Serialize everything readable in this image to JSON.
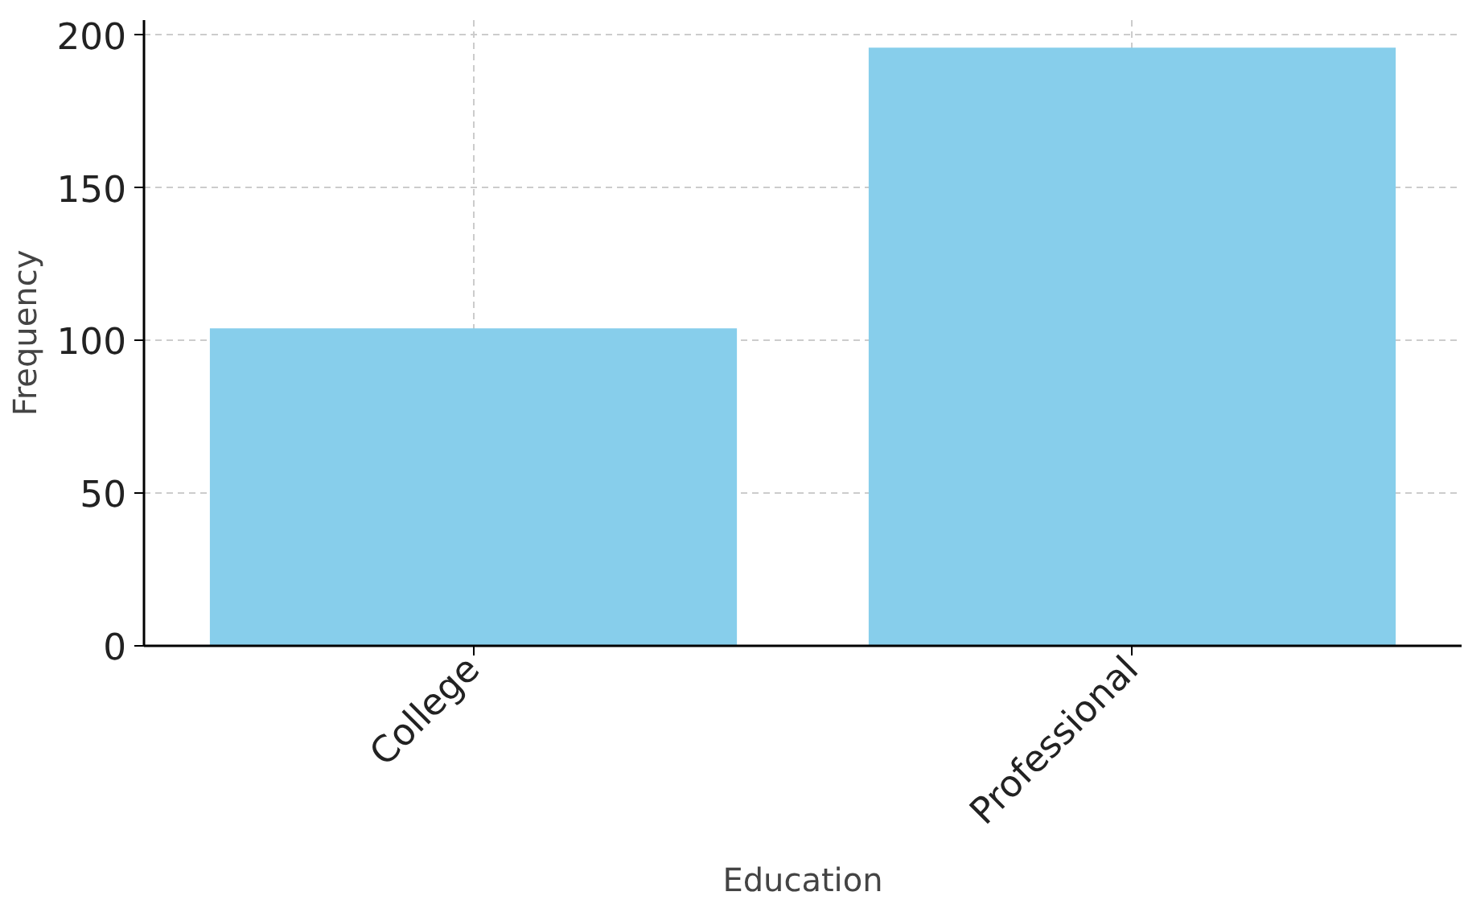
{
  "chart_data": {
    "type": "bar",
    "xlabel": "Education",
    "ylabel": "Frequency",
    "categories": [
      "College",
      "Professional"
    ],
    "values": [
      104,
      196
    ],
    "color": "#87ceeb",
    "ylim": [
      0,
      205
    ],
    "yticks": [
      0,
      50,
      100,
      150,
      200
    ],
    "grid": true
  }
}
